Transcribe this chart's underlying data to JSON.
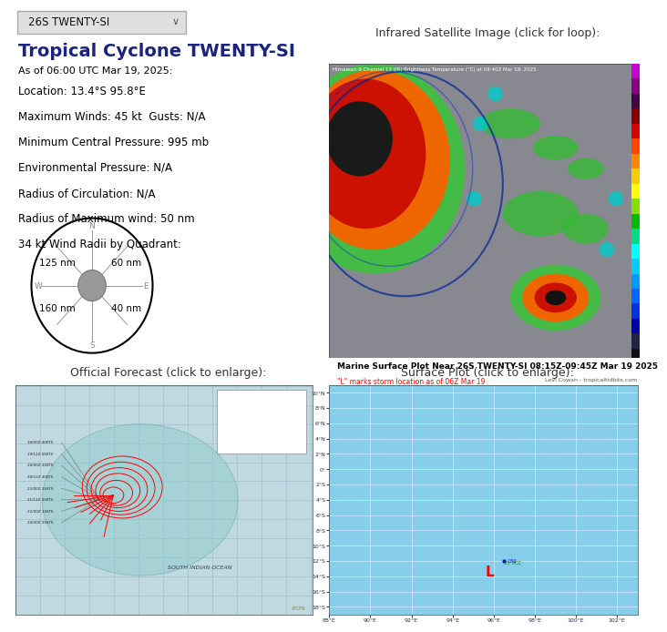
{
  "dropdown_text": "26S TWENTY-SI",
  "title": "Tropical Cyclone TWENTY-SI",
  "as_of": "As of 06:00 UTC Mar 19, 2025:",
  "location": "Location: 13.4°S 95.8°E",
  "max_winds": "Maximum Winds: 45 kt  Gusts: N/A",
  "min_pressure": "Minimum Central Pressure: 995 mb",
  "env_pressure": "Environmental Pressure: N/A",
  "rad_circulation": "Radius of Circulation: N/A",
  "rad_max_wind": "Radius of Maximum wind: 50 nm",
  "wind_radii": "34 kt Wind Radii by Quadrant:",
  "nw_radii": "125 nm",
  "ne_radii": "60 nm",
  "sw_radii": "160 nm",
  "se_radii": "40 nm",
  "sat_title": "Infrared Satellite Image (click for loop):",
  "sat_caption": "Himawari-9 Channel 13 (IR) Brightness Temperature (°C) at 09:40Z Mar 19, 2025",
  "forecast_title": "Official Forecast (click to enlarge):",
  "surface_title": "Surface Plot (click to enlarge):",
  "surface_subtitle": "Marine Surface Plot Near 26S TWENTY-SI 08:15Z-09:45Z Mar 19 2025",
  "surface_subtitle2": "\"L\" marks storm location as of 06Z Mar 19",
  "surface_credit": "Levi Cowan - tropicaltidbits.com",
  "bg_color": "#ffffff",
  "title_color": "#1a237e",
  "text_color": "#000000",
  "dropdown_bg": "#e0e0e0",
  "sat_bg": "#888888",
  "forecast_bg": "#c0d8e0",
  "surface_bg": "#87ceeb",
  "grid_color": "#9ab8c8",
  "surface_grid": "#7ab4c4"
}
